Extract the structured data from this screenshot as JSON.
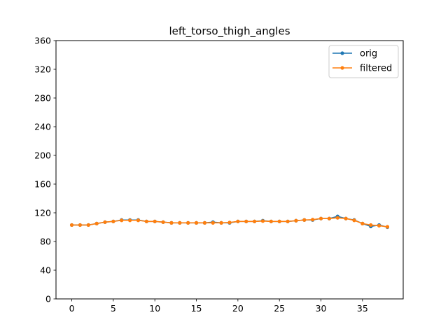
{
  "chart_data": {
    "type": "line",
    "title": "left_torso_thigh_angles",
    "xlabel": "",
    "ylabel": "",
    "xlim": [
      -1.9,
      39.9
    ],
    "ylim": [
      0,
      360
    ],
    "x_ticks": [
      0,
      5,
      10,
      15,
      20,
      25,
      30,
      35
    ],
    "y_ticks": [
      0,
      40,
      80,
      120,
      160,
      200,
      240,
      280,
      320,
      360
    ],
    "legend_position": "top-right",
    "x": [
      0,
      1,
      2,
      3,
      4,
      5,
      6,
      7,
      8,
      9,
      10,
      11,
      12,
      13,
      14,
      15,
      16,
      17,
      18,
      19,
      20,
      21,
      22,
      23,
      24,
      25,
      26,
      27,
      28,
      29,
      30,
      31,
      32,
      33,
      34,
      35,
      36,
      37,
      38
    ],
    "series": [
      {
        "name": "orig",
        "color": "#1f77b4",
        "values": [
          103,
          103,
          103,
          105,
          107,
          108,
          110,
          110,
          110,
          108,
          108,
          107,
          106,
          106,
          106,
          106,
          106,
          107,
          106,
          106,
          108,
          108,
          108,
          109,
          108,
          108,
          108,
          109,
          110,
          110,
          112,
          112,
          115,
          112,
          110,
          105,
          101,
          103,
          100
        ]
      },
      {
        "name": "filtered",
        "color": "#ff7f0e",
        "values": [
          103,
          103,
          103,
          105,
          107,
          108,
          109.5,
          109.5,
          109.5,
          108,
          108,
          107,
          106,
          106,
          106,
          106,
          106,
          106,
          106,
          106.5,
          108,
          108,
          108,
          108.5,
          108,
          108,
          108,
          109,
          110,
          110.5,
          112,
          112,
          113,
          112,
          109.5,
          105,
          103,
          102,
          100.5
        ]
      }
    ]
  }
}
